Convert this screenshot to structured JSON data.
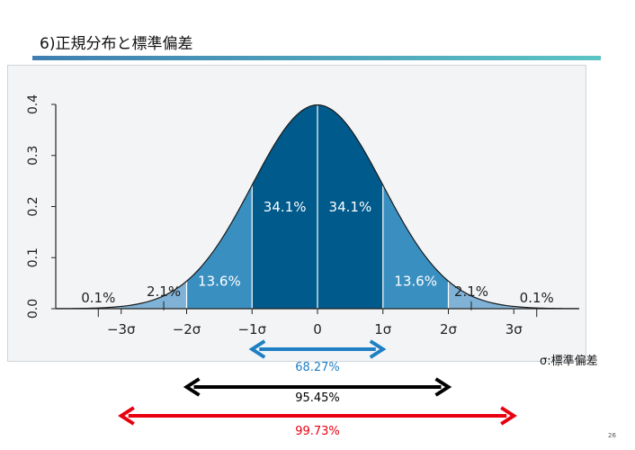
{
  "slide": {
    "title": "6)正規分布と標準偏差",
    "note": "σ:標準偏差",
    "page_number": "26"
  },
  "colors": {
    "center_band": "#005a8c",
    "second_band": "#3a8fc1",
    "third_band": "#7fb2d6",
    "tail": "#a8c8e2",
    "arrow_1": "#1f7fc4",
    "arrow_2": "#000000",
    "arrow_3": "#e8000f"
  },
  "chart_data": {
    "type": "area",
    "title": "",
    "xlabel": "",
    "ylabel": "",
    "xlim": [
      -4,
      4
    ],
    "ylim": [
      0,
      0.4
    ],
    "y_ticks": [
      "0.0",
      "0.1",
      "0.2",
      "0.3",
      "0.4"
    ],
    "x_ticks": [
      {
        "x": -3,
        "label": "−3σ"
      },
      {
        "x": -2,
        "label": "−2σ"
      },
      {
        "x": -1,
        "label": "−1σ"
      },
      {
        "x": 0,
        "label": "0"
      },
      {
        "x": 1,
        "label": "1σ"
      },
      {
        "x": 2,
        "label": "2σ"
      },
      {
        "x": 3,
        "label": "3σ"
      }
    ],
    "curve": "standard normal density",
    "bands": [
      {
        "from": -4,
        "to": -3,
        "color": "tail"
      },
      {
        "from": -3,
        "to": -2,
        "color": "third_band"
      },
      {
        "from": -2,
        "to": -1,
        "color": "second_band"
      },
      {
        "from": -1,
        "to": 0,
        "color": "center_band"
      },
      {
        "from": 0,
        "to": 1,
        "color": "center_band"
      },
      {
        "from": 1,
        "to": 2,
        "color": "second_band"
      },
      {
        "from": 2,
        "to": 3,
        "color": "third_band"
      },
      {
        "from": 3,
        "to": 4,
        "color": "tail"
      }
    ],
    "area_labels": [
      {
        "x": -3.35,
        "y": 0.012,
        "text": "0.1%"
      },
      {
        "x": -2.35,
        "y": 0.025,
        "text": "2.1%"
      },
      {
        "x": -1.5,
        "y": 0.045,
        "text": "13.6%",
        "inside": true
      },
      {
        "x": -0.5,
        "y": 0.19,
        "text": "34.1%",
        "inside": true
      },
      {
        "x": 0.5,
        "y": 0.19,
        "text": "34.1%",
        "inside": true
      },
      {
        "x": 1.5,
        "y": 0.045,
        "text": "13.6%",
        "inside": true
      },
      {
        "x": 2.35,
        "y": 0.025,
        "text": "2.1%"
      },
      {
        "x": 3.35,
        "y": 0.012,
        "text": "0.1%"
      }
    ],
    "ranges": [
      {
        "from": -1,
        "to": 1,
        "label": "68.27%",
        "color": "arrow_1"
      },
      {
        "from": -2,
        "to": 2,
        "label": "95.45%",
        "color": "arrow_2"
      },
      {
        "from": -3,
        "to": 3,
        "label": "99.73%",
        "color": "arrow_3"
      }
    ]
  }
}
